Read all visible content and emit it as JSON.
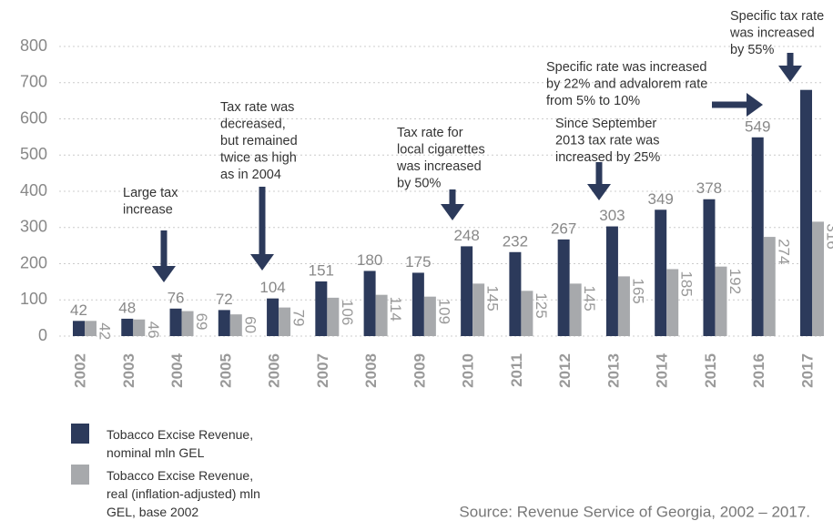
{
  "chart_data": {
    "type": "bar",
    "categories": [
      "2002",
      "2003",
      "2004",
      "2005",
      "2006",
      "2007",
      "2008",
      "2009",
      "2010",
      "2011",
      "2012",
      "2013",
      "2014",
      "2015",
      "2016",
      "2017"
    ],
    "series": [
      {
        "name": "Tobacco Excise Revenue, nominal mln GEL",
        "color": "#2c3a5b",
        "values": [
          42,
          48,
          76,
          72,
          104,
          151,
          180,
          175,
          248,
          232,
          267,
          303,
          349,
          378,
          549,
          680
        ],
        "value_labels": [
          42,
          48,
          76,
          72,
          104,
          151,
          180,
          175,
          248,
          232,
          267,
          303,
          349,
          378,
          549,
          null
        ]
      },
      {
        "name": "Tobacco Excise Revenue, real (inflation-adjusted) mln GEL, base 2002",
        "color": "#a7a9ac",
        "values": [
          42,
          46,
          69,
          60,
          79,
          106,
          114,
          109,
          145,
          125,
          145,
          165,
          185,
          192,
          274,
          316
        ]
      }
    ],
    "ylim": [
      0,
      800
    ],
    "yticks": [
      0,
      100,
      200,
      300,
      400,
      500,
      600,
      700,
      800
    ],
    "grid": true,
    "annotations": [
      {
        "lines": [
          "Large tax",
          "increase"
        ]
      },
      {
        "lines": [
          "Tax rate was",
          "decreased,",
          "but remained",
          "twice as high",
          "as in 2004"
        ]
      },
      {
        "lines": [
          "Tax rate for",
          "local cigarettes",
          "was increased",
          "by 50%"
        ]
      },
      {
        "lines": [
          "Since September",
          "2013 tax rate was",
          "increased by 25%"
        ]
      },
      {
        "lines": [
          "Specific rate was increased",
          "by 22% and advalorem rate",
          "from 5% to 10%"
        ]
      },
      {
        "lines": [
          "Specific tax rate",
          "was increased",
          "by 55%"
        ]
      }
    ],
    "source": "Source: Revenue Service of Georgia, 2002 – 2017."
  }
}
